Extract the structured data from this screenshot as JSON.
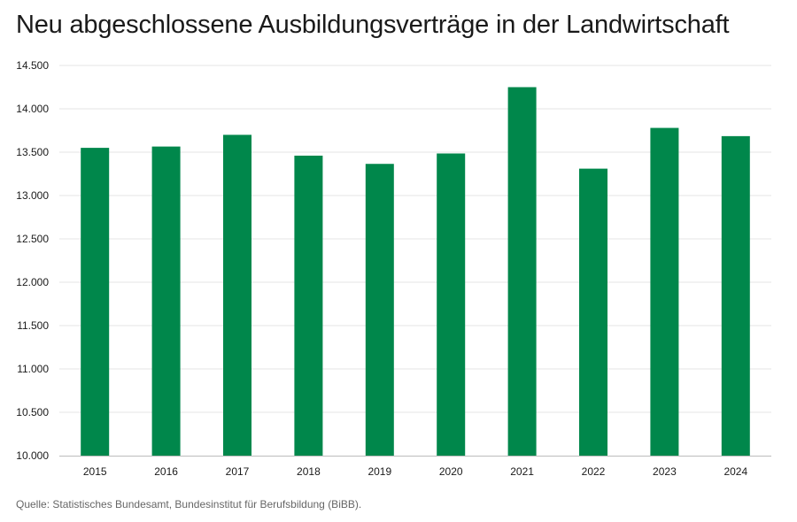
{
  "title": "Neu abgeschlossene Ausbildungsverträge in der Landwirtschaft",
  "source": "Quelle: Statistisches Bundesamt, Bundesinstitut für Berufsbildung (BiBB).",
  "colors": {
    "bar": "#00874b",
    "grid": "#e6e6e6",
    "axis": "#bdbdbd",
    "text": "#1a1a1a"
  },
  "chart_data": {
    "type": "bar",
    "title": "Neu abgeschlossene Ausbildungsverträge in der Landwirtschaft",
    "xlabel": "",
    "ylabel": "",
    "categories": [
      "2015",
      "2016",
      "2017",
      "2018",
      "2019",
      "2020",
      "2021",
      "2022",
      "2023",
      "2024"
    ],
    "values": [
      13550,
      13565,
      13700,
      13460,
      13365,
      13485,
      14250,
      13310,
      13780,
      13685
    ],
    "ylim": [
      10000,
      14500
    ],
    "yticks": [
      10000,
      10500,
      11000,
      11500,
      12000,
      12500,
      13000,
      13500,
      14000,
      14500
    ],
    "ytick_labels": [
      "10.000",
      "10.500",
      "11.000",
      "11.500",
      "12.000",
      "12.500",
      "13.000",
      "13.500",
      "14.000",
      "14.500"
    ],
    "grid": true,
    "legend": "none"
  }
}
